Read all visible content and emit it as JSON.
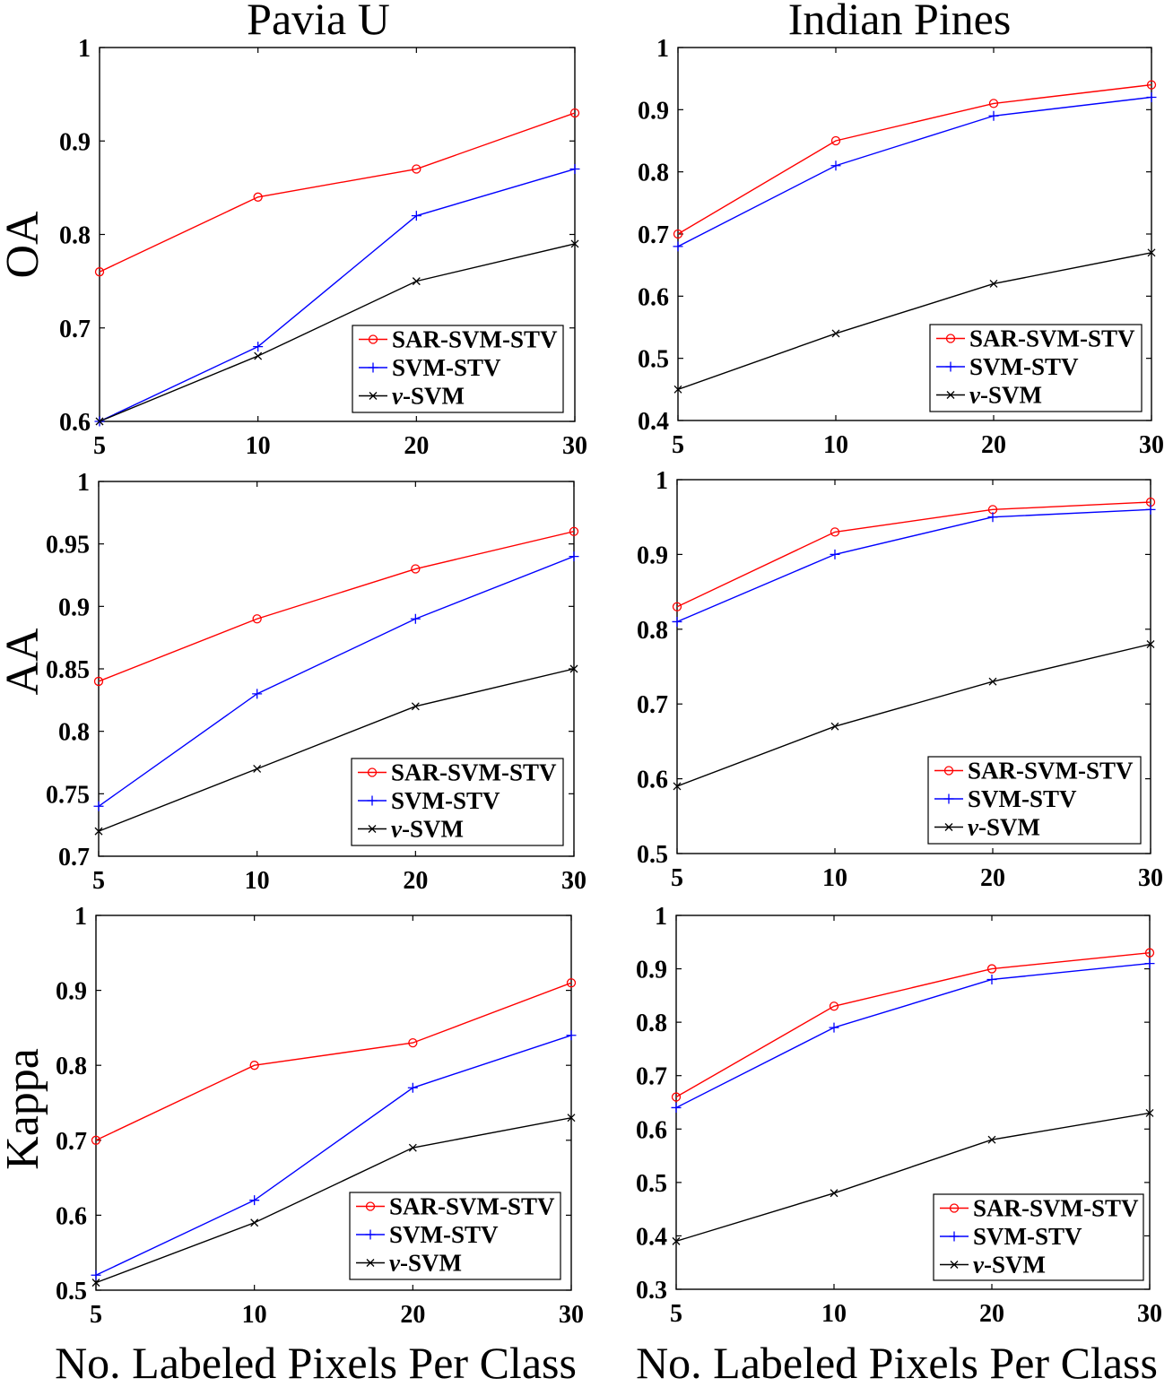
{
  "chart_data": [
    {
      "type": "line",
      "title": "Pavia U",
      "ylabel": "OA",
      "categories": [
        "5",
        "10",
        "20",
        "30"
      ],
      "ylim": [
        0.6,
        1
      ],
      "yticks": [
        0.6,
        0.7,
        0.8,
        0.9,
        1
      ],
      "grid": false,
      "legend": "bottom-right",
      "series": [
        {
          "name": "SAR-SVM-STV",
          "color": "#ff0000",
          "marker": "circle",
          "values": [
            0.76,
            0.84,
            0.87,
            0.93
          ]
        },
        {
          "name": "SVM-STV",
          "color": "#0000ff",
          "marker": "plus",
          "values": [
            0.6,
            0.68,
            0.82,
            0.87
          ]
        },
        {
          "name": "ν-SVM",
          "color": "#000000",
          "marker": "x",
          "values": [
            0.6,
            0.67,
            0.75,
            0.79
          ]
        }
      ]
    },
    {
      "type": "line",
      "title": "Indian Pines",
      "categories": [
        "5",
        "10",
        "20",
        "30"
      ],
      "ylim": [
        0.4,
        1
      ],
      "yticks": [
        0.4,
        0.5,
        0.6,
        0.7,
        0.8,
        0.9,
        1
      ],
      "grid": false,
      "legend": "bottom-right",
      "series": [
        {
          "name": "SAR-SVM-STV",
          "color": "#ff0000",
          "marker": "circle",
          "values": [
            0.7,
            0.85,
            0.91,
            0.94
          ]
        },
        {
          "name": "SVM-STV",
          "color": "#0000ff",
          "marker": "plus",
          "values": [
            0.68,
            0.81,
            0.89,
            0.92
          ]
        },
        {
          "name": "ν-SVM",
          "color": "#000000",
          "marker": "x",
          "values": [
            0.45,
            0.54,
            0.62,
            0.67
          ]
        }
      ]
    },
    {
      "type": "line",
      "ylabel": "AA",
      "categories": [
        "5",
        "10",
        "20",
        "30"
      ],
      "ylim": [
        0.7,
        1
      ],
      "yticks": [
        0.7,
        0.75,
        0.8,
        0.85,
        0.9,
        0.95,
        1
      ],
      "grid": false,
      "legend": "bottom-right",
      "series": [
        {
          "name": "SAR-SVM-STV",
          "color": "#ff0000",
          "marker": "circle",
          "values": [
            0.84,
            0.89,
            0.93,
            0.96
          ]
        },
        {
          "name": "SVM-STV",
          "color": "#0000ff",
          "marker": "plus",
          "values": [
            0.74,
            0.83,
            0.89,
            0.94
          ]
        },
        {
          "name": "ν-SVM",
          "color": "#000000",
          "marker": "x",
          "values": [
            0.72,
            0.77,
            0.82,
            0.85
          ]
        }
      ]
    },
    {
      "type": "line",
      "categories": [
        "5",
        "10",
        "20",
        "30"
      ],
      "ylim": [
        0.5,
        1
      ],
      "yticks": [
        0.5,
        0.6,
        0.7,
        0.8,
        0.9,
        1
      ],
      "grid": false,
      "legend": "bottom-right",
      "series": [
        {
          "name": "SAR-SVM-STV",
          "color": "#ff0000",
          "marker": "circle",
          "values": [
            0.83,
            0.93,
            0.96,
            0.97
          ]
        },
        {
          "name": "SVM-STV",
          "color": "#0000ff",
          "marker": "plus",
          "values": [
            0.81,
            0.9,
            0.95,
            0.96
          ]
        },
        {
          "name": "ν-SVM",
          "color": "#000000",
          "marker": "x",
          "values": [
            0.59,
            0.67,
            0.73,
            0.78
          ]
        }
      ]
    },
    {
      "type": "line",
      "ylabel": "Kappa",
      "xlabel": "No. Labeled Pixels Per Class",
      "categories": [
        "5",
        "10",
        "20",
        "30"
      ],
      "ylim": [
        0.5,
        1
      ],
      "yticks": [
        0.5,
        0.6,
        0.7,
        0.8,
        0.9,
        1
      ],
      "grid": false,
      "legend": "bottom-right",
      "series": [
        {
          "name": "SAR-SVM-STV",
          "color": "#ff0000",
          "marker": "circle",
          "values": [
            0.7,
            0.8,
            0.83,
            0.91
          ]
        },
        {
          "name": "SVM-STV",
          "color": "#0000ff",
          "marker": "plus",
          "values": [
            0.52,
            0.62,
            0.77,
            0.84
          ]
        },
        {
          "name": "ν-SVM",
          "color": "#000000",
          "marker": "x",
          "values": [
            0.51,
            0.59,
            0.69,
            0.73
          ]
        }
      ]
    },
    {
      "type": "line",
      "xlabel": "No. Labeled Pixels Per Class",
      "categories": [
        "5",
        "10",
        "20",
        "30"
      ],
      "ylim": [
        0.3,
        1
      ],
      "yticks": [
        0.3,
        0.4,
        0.5,
        0.6,
        0.7,
        0.8,
        0.9,
        1
      ],
      "grid": false,
      "legend": "bottom-right",
      "series": [
        {
          "name": "SAR-SVM-STV",
          "color": "#ff0000",
          "marker": "circle",
          "values": [
            0.66,
            0.83,
            0.9,
            0.93
          ]
        },
        {
          "name": "SVM-STV",
          "color": "#0000ff",
          "marker": "plus",
          "values": [
            0.64,
            0.79,
            0.88,
            0.91
          ]
        },
        {
          "name": "ν-SVM",
          "color": "#000000",
          "marker": "x",
          "values": [
            0.39,
            0.48,
            0.58,
            0.63
          ]
        }
      ]
    }
  ]
}
